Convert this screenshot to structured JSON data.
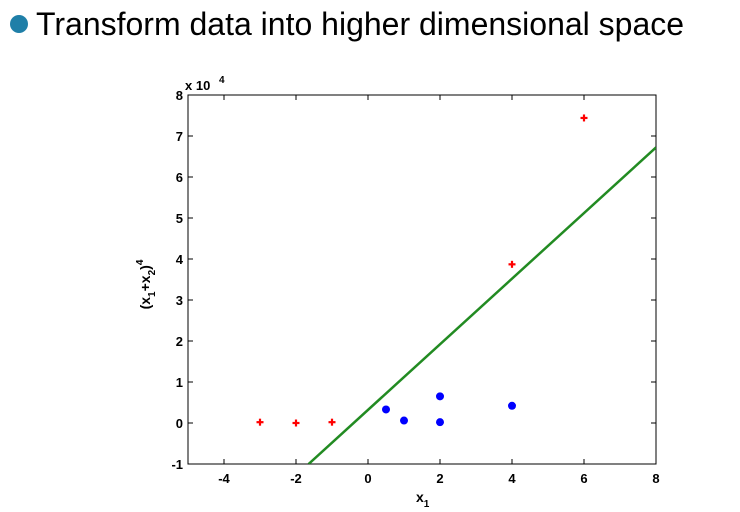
{
  "slide": {
    "bullet_text": "Transform data into higher dimensional space",
    "bullet_color": "#1f7fa8"
  },
  "chart_data": {
    "type": "scatter",
    "xlabel": "x",
    "xlabel_sub": "1",
    "ylabel_parts": [
      "(x",
      "1",
      "+x",
      "2",
      ")",
      "4"
    ],
    "y_multiplier_base": "x 10",
    "y_multiplier_exp": "4",
    "xlim": [
      -5,
      8
    ],
    "ylim": [
      -1,
      8
    ],
    "xticks": [
      -4,
      -2,
      0,
      2,
      4,
      6,
      8
    ],
    "yticks": [
      -1,
      0,
      1,
      2,
      3,
      4,
      5,
      6,
      7,
      8
    ],
    "grid": false,
    "series": [
      {
        "marker": "plus",
        "color": "#ff0000",
        "points": [
          {
            "x": -3,
            "y": 0.02
          },
          {
            "x": -2,
            "y": 0.0
          },
          {
            "x": -1,
            "y": 0.02
          },
          {
            "x": 4,
            "y": 3.87
          },
          {
            "x": 6,
            "y": 7.44
          }
        ]
      },
      {
        "marker": "dot",
        "color": "#0000ff",
        "points": [
          {
            "x": 0.5,
            "y": 0.33
          },
          {
            "x": 1,
            "y": 0.06
          },
          {
            "x": 2,
            "y": 0.65
          },
          {
            "x": 2,
            "y": 0.02
          },
          {
            "x": 4,
            "y": 0.42
          }
        ]
      }
    ],
    "separator_line": {
      "color": "#228b22",
      "points": [
        {
          "x": -1.65,
          "y": -1.0
        },
        {
          "x": 8.0,
          "y": 6.72
        }
      ]
    }
  }
}
